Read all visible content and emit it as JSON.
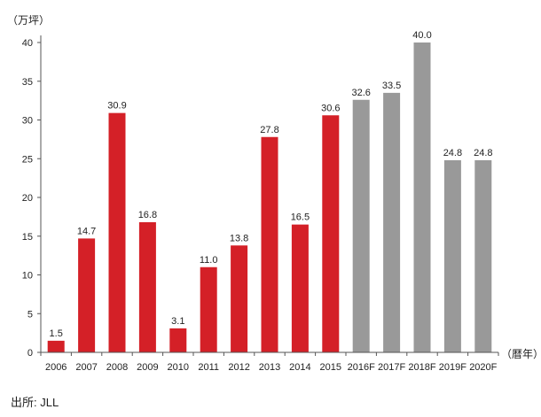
{
  "chart_data": {
    "type": "bar",
    "title": "",
    "ylabel": "（万坪）",
    "xlabel": "（暦年）",
    "ylim": [
      0,
      40
    ],
    "yticks": [
      0,
      5,
      10,
      15,
      20,
      25,
      30,
      35,
      40
    ],
    "categories": [
      "2006",
      "2007",
      "2008",
      "2009",
      "2010",
      "2011",
      "2012",
      "2013",
      "2014",
      "2015",
      "2016F",
      "2017F",
      "2018F",
      "2019F",
      "2020F"
    ],
    "values": [
      1.5,
      14.7,
      30.9,
      16.8,
      3.1,
      11.0,
      13.8,
      27.8,
      16.5,
      30.6,
      32.6,
      33.5,
      40.0,
      24.8,
      24.8
    ],
    "value_labels": [
      "1.5",
      "14.7",
      "30.9",
      "16.8",
      "3.1",
      "11.0",
      "13.8",
      "27.8",
      "16.5",
      "30.6",
      "32.6",
      "33.5",
      "40.0",
      "24.8",
      "24.8"
    ],
    "series_kind": [
      "actual",
      "actual",
      "actual",
      "actual",
      "actual",
      "actual",
      "actual",
      "actual",
      "actual",
      "actual",
      "forecast",
      "forecast",
      "forecast",
      "forecast",
      "forecast"
    ],
    "colors": {
      "actual": "#d42027",
      "forecast": "#999999",
      "axis": "#555555"
    }
  },
  "source_text": "出所: JLL"
}
